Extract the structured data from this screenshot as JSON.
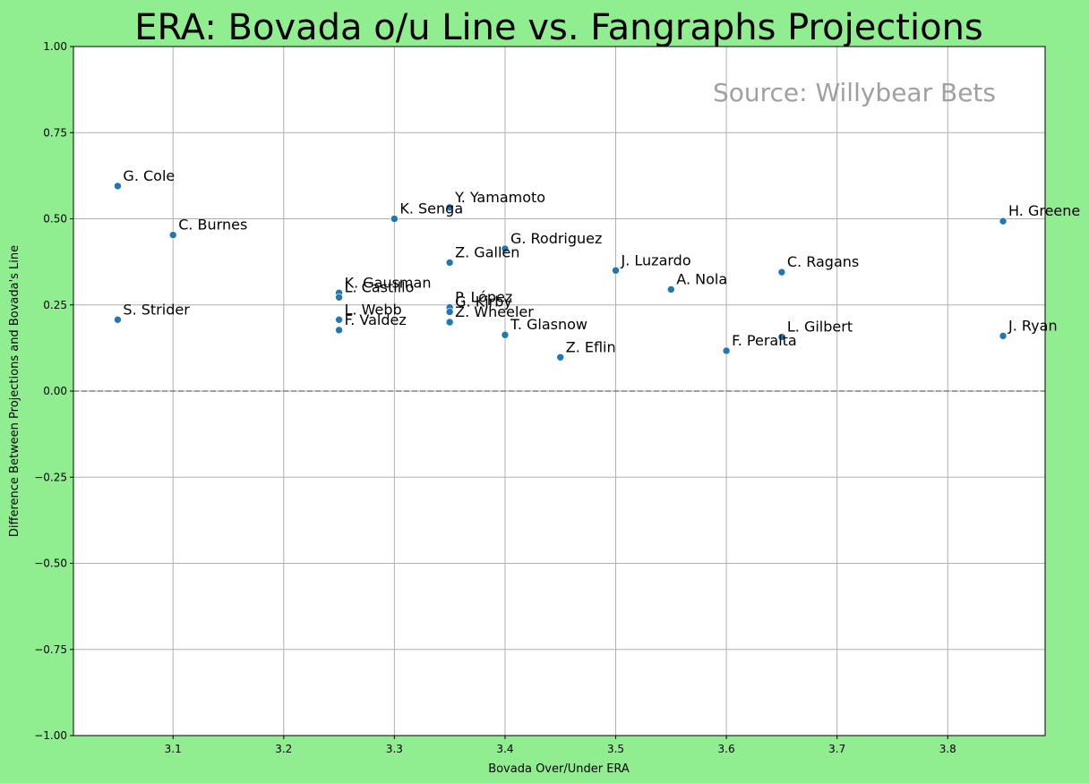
{
  "chart_data": {
    "type": "scatter",
    "title": "ERA: Bovada o/u Line vs. Fangraphs Projections",
    "xlabel": "Bovada Over/Under ERA",
    "ylabel": "Difference Between Projections and Bovada's Line",
    "annotation": "Source: Willybear Bets",
    "xlim": [
      3.01,
      3.888
    ],
    "ylim": [
      -1.0,
      1.0
    ],
    "x_ticks": [
      3.1,
      3.2,
      3.3,
      3.4,
      3.5,
      3.6,
      3.7,
      3.8
    ],
    "x_tick_labels": [
      "3.1",
      "3.2",
      "3.3",
      "3.4",
      "3.5",
      "3.6",
      "3.7",
      "3.8"
    ],
    "y_ticks": [
      -1.0,
      -0.75,
      -0.5,
      -0.25,
      0.0,
      0.25,
      0.5,
      0.75,
      1.0
    ],
    "y_tick_labels": [
      "−1.00",
      "−0.75",
      "−0.50",
      "−0.25",
      "0.00",
      "0.25",
      "0.50",
      "0.75",
      "1.00"
    ],
    "reference_line": 0.0,
    "grid": true,
    "colors": {
      "background": "#90ee90",
      "plot_area": "#ffffff",
      "point": "#1f77b4",
      "grid": "#b0b0b0",
      "reference_line": "#808080",
      "annotation": "#a0a0a0"
    },
    "points": [
      {
        "label": "G. Cole",
        "x": 3.05,
        "y": 0.595
      },
      {
        "label": "S. Strider",
        "x": 3.05,
        "y": 0.207
      },
      {
        "label": "C. Burnes",
        "x": 3.1,
        "y": 0.453
      },
      {
        "label": "K. Gausman",
        "x": 3.25,
        "y": 0.285
      },
      {
        "label": "L. Castillo",
        "x": 3.25,
        "y": 0.272
      },
      {
        "label": "L. Webb",
        "x": 3.25,
        "y": 0.207
      },
      {
        "label": "F. Valdez",
        "x": 3.25,
        "y": 0.177
      },
      {
        "label": "K. Senga",
        "x": 3.3,
        "y": 0.5
      },
      {
        "label": "Y. Yamamoto",
        "x": 3.35,
        "y": 0.533
      },
      {
        "label": "Z. Gallen",
        "x": 3.35,
        "y": 0.373
      },
      {
        "label": "P. López",
        "x": 3.35,
        "y": 0.243
      },
      {
        "label": "G. Kirby",
        "x": 3.35,
        "y": 0.23
      },
      {
        "label": "Z. Wheeler",
        "x": 3.35,
        "y": 0.2
      },
      {
        "label": "G. Rodriguez",
        "x": 3.4,
        "y": 0.413
      },
      {
        "label": "T. Glasnow",
        "x": 3.4,
        "y": 0.163
      },
      {
        "label": "Z. Eflin",
        "x": 3.45,
        "y": 0.098
      },
      {
        "label": "J. Luzardo",
        "x": 3.5,
        "y": 0.35
      },
      {
        "label": "A. Nola",
        "x": 3.55,
        "y": 0.295
      },
      {
        "label": "F. Peralta",
        "x": 3.6,
        "y": 0.117
      },
      {
        "label": "C. Ragans",
        "x": 3.65,
        "y": 0.345
      },
      {
        "label": "L. Gilbert",
        "x": 3.65,
        "y": 0.157
      },
      {
        "label": "H. Greene",
        "x": 3.85,
        "y": 0.493
      },
      {
        "label": "J. Ryan",
        "x": 3.85,
        "y": 0.16
      }
    ]
  }
}
